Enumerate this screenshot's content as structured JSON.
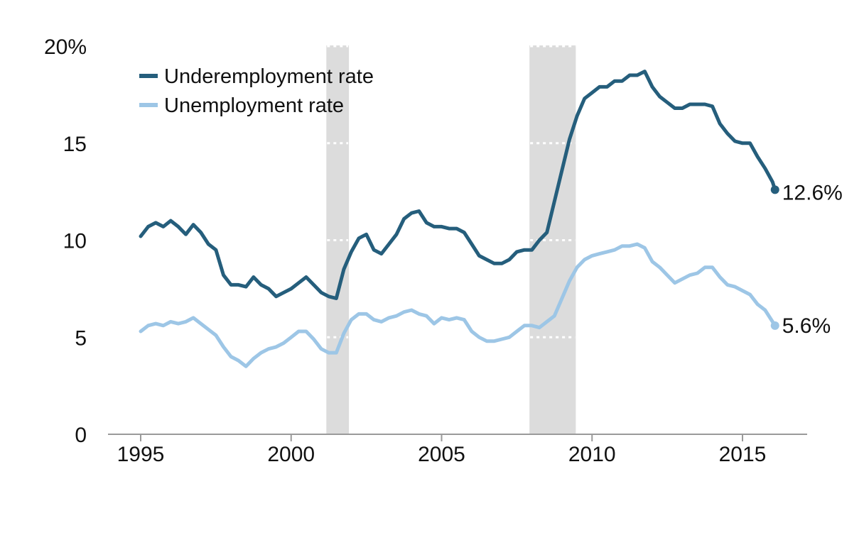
{
  "chart_data": {
    "type": "line",
    "title": "",
    "xlabel": "",
    "ylabel": "",
    "xlim": [
      1994.1,
      2017.2
    ],
    "ylim": [
      0,
      20
    ],
    "y_ticks": [
      {
        "value": 0,
        "label": "0"
      },
      {
        "value": 5,
        "label": "5"
      },
      {
        "value": 10,
        "label": "10"
      },
      {
        "value": 15,
        "label": "15"
      },
      {
        "value": 20,
        "label": "20%"
      }
    ],
    "x_ticks": [
      {
        "value": 1995,
        "label": "1995"
      },
      {
        "value": 2000,
        "label": "2000"
      },
      {
        "value": 2005,
        "label": "2005"
      },
      {
        "value": 2010,
        "label": "2010"
      },
      {
        "value": 2015,
        "label": "2015"
      }
    ],
    "gridlines": [
      5,
      10,
      15,
      20
    ],
    "grid": "dotted white lines visible only inside recession bands",
    "recessions": [
      {
        "start": 2001.17,
        "end": 2001.92
      },
      {
        "start": 2007.92,
        "end": 2009.46
      }
    ],
    "legend": {
      "placement": "top-left"
    },
    "series": [
      {
        "name": "Underemployment rate",
        "color": "#255e7c",
        "end_label": "12.6%",
        "points": [
          [
            1995.0,
            10.2
          ],
          [
            1995.25,
            10.7
          ],
          [
            1995.5,
            10.9
          ],
          [
            1995.75,
            10.7
          ],
          [
            1996.0,
            11.0
          ],
          [
            1996.25,
            10.7
          ],
          [
            1996.5,
            10.3
          ],
          [
            1996.75,
            10.8
          ],
          [
            1997.0,
            10.4
          ],
          [
            1997.25,
            9.8
          ],
          [
            1997.5,
            9.5
          ],
          [
            1997.75,
            8.2
          ],
          [
            1998.0,
            7.7
          ],
          [
            1998.25,
            7.7
          ],
          [
            1998.5,
            7.6
          ],
          [
            1998.75,
            8.1
          ],
          [
            1999.0,
            7.7
          ],
          [
            1999.25,
            7.5
          ],
          [
            1999.5,
            7.1
          ],
          [
            1999.75,
            7.3
          ],
          [
            2000.0,
            7.5
          ],
          [
            2000.25,
            7.8
          ],
          [
            2000.5,
            8.1
          ],
          [
            2000.75,
            7.7
          ],
          [
            2001.0,
            7.3
          ],
          [
            2001.25,
            7.1
          ],
          [
            2001.5,
            7.0
          ],
          [
            2001.75,
            8.5
          ],
          [
            2002.0,
            9.4
          ],
          [
            2002.25,
            10.1
          ],
          [
            2002.5,
            10.3
          ],
          [
            2002.75,
            9.5
          ],
          [
            2003.0,
            9.3
          ],
          [
            2003.25,
            9.8
          ],
          [
            2003.5,
            10.3
          ],
          [
            2003.75,
            11.1
          ],
          [
            2004.0,
            11.4
          ],
          [
            2004.25,
            11.5
          ],
          [
            2004.5,
            10.9
          ],
          [
            2004.75,
            10.7
          ],
          [
            2005.0,
            10.7
          ],
          [
            2005.25,
            10.6
          ],
          [
            2005.5,
            10.6
          ],
          [
            2005.75,
            10.4
          ],
          [
            2006.0,
            9.8
          ],
          [
            2006.25,
            9.2
          ],
          [
            2006.5,
            9.0
          ],
          [
            2006.75,
            8.8
          ],
          [
            2007.0,
            8.8
          ],
          [
            2007.25,
            9.0
          ],
          [
            2007.5,
            9.4
          ],
          [
            2007.75,
            9.5
          ],
          [
            2008.0,
            9.5
          ],
          [
            2008.25,
            10.0
          ],
          [
            2008.5,
            10.4
          ],
          [
            2008.75,
            12.0
          ],
          [
            2009.0,
            13.6
          ],
          [
            2009.25,
            15.2
          ],
          [
            2009.5,
            16.4
          ],
          [
            2009.75,
            17.3
          ],
          [
            2010.0,
            17.6
          ],
          [
            2010.25,
            17.9
          ],
          [
            2010.5,
            17.9
          ],
          [
            2010.75,
            18.2
          ],
          [
            2011.0,
            18.2
          ],
          [
            2011.25,
            18.5
          ],
          [
            2011.5,
            18.5
          ],
          [
            2011.75,
            18.7
          ],
          [
            2012.0,
            17.9
          ],
          [
            2012.25,
            17.4
          ],
          [
            2012.5,
            17.1
          ],
          [
            2012.75,
            16.8
          ],
          [
            2013.0,
            16.8
          ],
          [
            2013.25,
            17.0
          ],
          [
            2013.5,
            17.0
          ],
          [
            2013.75,
            17.0
          ],
          [
            2014.0,
            16.9
          ],
          [
            2014.25,
            16.0
          ],
          [
            2014.5,
            15.5
          ],
          [
            2014.75,
            15.1
          ],
          [
            2015.0,
            15.0
          ],
          [
            2015.25,
            15.0
          ],
          [
            2015.5,
            14.3
          ],
          [
            2015.75,
            13.7
          ],
          [
            2016.0,
            13.0
          ],
          [
            2016.08,
            12.6
          ]
        ]
      },
      {
        "name": "Unemployment rate",
        "color": "#9dc6e6",
        "end_label": "5.6%",
        "points": [
          [
            1995.0,
            5.3
          ],
          [
            1995.25,
            5.6
          ],
          [
            1995.5,
            5.7
          ],
          [
            1995.75,
            5.6
          ],
          [
            1996.0,
            5.8
          ],
          [
            1996.25,
            5.7
          ],
          [
            1996.5,
            5.8
          ],
          [
            1996.75,
            6.0
          ],
          [
            1997.0,
            5.7
          ],
          [
            1997.25,
            5.4
          ],
          [
            1997.5,
            5.1
          ],
          [
            1997.75,
            4.5
          ],
          [
            1998.0,
            4.0
          ],
          [
            1998.25,
            3.8
          ],
          [
            1998.5,
            3.5
          ],
          [
            1998.75,
            3.9
          ],
          [
            1999.0,
            4.2
          ],
          [
            1999.25,
            4.4
          ],
          [
            1999.5,
            4.5
          ],
          [
            1999.75,
            4.7
          ],
          [
            2000.0,
            5.0
          ],
          [
            2000.25,
            5.3
          ],
          [
            2000.5,
            5.3
          ],
          [
            2000.75,
            4.9
          ],
          [
            2001.0,
            4.4
          ],
          [
            2001.25,
            4.2
          ],
          [
            2001.5,
            4.2
          ],
          [
            2001.75,
            5.2
          ],
          [
            2002.0,
            5.9
          ],
          [
            2002.25,
            6.2
          ],
          [
            2002.5,
            6.2
          ],
          [
            2002.75,
            5.9
          ],
          [
            2003.0,
            5.8
          ],
          [
            2003.25,
            6.0
          ],
          [
            2003.5,
            6.1
          ],
          [
            2003.75,
            6.3
          ],
          [
            2004.0,
            6.4
          ],
          [
            2004.25,
            6.2
          ],
          [
            2004.5,
            6.1
          ],
          [
            2004.75,
            5.7
          ],
          [
            2005.0,
            6.0
          ],
          [
            2005.25,
            5.9
          ],
          [
            2005.5,
            6.0
          ],
          [
            2005.75,
            5.9
          ],
          [
            2006.0,
            5.3
          ],
          [
            2006.25,
            5.0
          ],
          [
            2006.5,
            4.8
          ],
          [
            2006.75,
            4.8
          ],
          [
            2007.0,
            4.9
          ],
          [
            2007.25,
            5.0
          ],
          [
            2007.5,
            5.3
          ],
          [
            2007.75,
            5.6
          ],
          [
            2008.0,
            5.6
          ],
          [
            2008.25,
            5.5
          ],
          [
            2008.5,
            5.8
          ],
          [
            2008.75,
            6.1
          ],
          [
            2009.0,
            7.0
          ],
          [
            2009.25,
            7.9
          ],
          [
            2009.5,
            8.6
          ],
          [
            2009.75,
            9.0
          ],
          [
            2010.0,
            9.2
          ],
          [
            2010.25,
            9.3
          ],
          [
            2010.5,
            9.4
          ],
          [
            2010.75,
            9.5
          ],
          [
            2011.0,
            9.7
          ],
          [
            2011.25,
            9.7
          ],
          [
            2011.5,
            9.8
          ],
          [
            2011.75,
            9.6
          ],
          [
            2012.0,
            8.9
          ],
          [
            2012.25,
            8.6
          ],
          [
            2012.5,
            8.2
          ],
          [
            2012.75,
            7.8
          ],
          [
            2013.0,
            8.0
          ],
          [
            2013.25,
            8.2
          ],
          [
            2013.5,
            8.3
          ],
          [
            2013.75,
            8.6
          ],
          [
            2014.0,
            8.6
          ],
          [
            2014.25,
            8.1
          ],
          [
            2014.5,
            7.7
          ],
          [
            2014.75,
            7.6
          ],
          [
            2015.0,
            7.4
          ],
          [
            2015.25,
            7.2
          ],
          [
            2015.5,
            6.7
          ],
          [
            2015.75,
            6.4
          ],
          [
            2016.0,
            5.8
          ],
          [
            2016.08,
            5.6
          ]
        ]
      }
    ]
  }
}
